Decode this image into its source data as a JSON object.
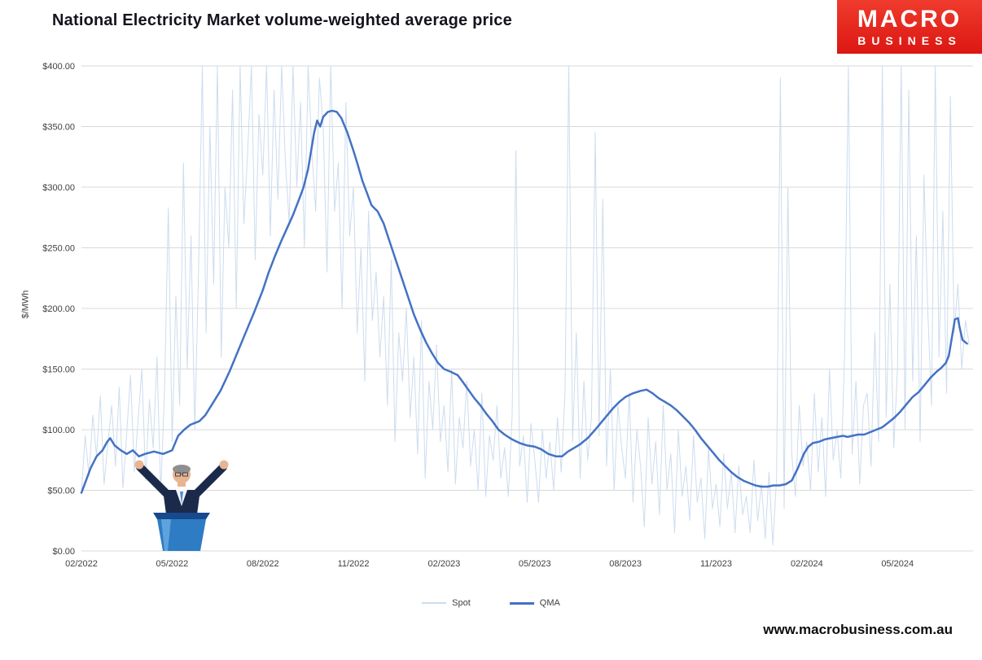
{
  "page": {
    "title": "National Electricity Market volume-weighted average price",
    "footer_url": "www.macrobusiness.com.au"
  },
  "logo": {
    "line1": "MACRO",
    "line2": "BUSINESS",
    "bg_color": "#e32119",
    "text_color": "#ffffff"
  },
  "chart_data": {
    "type": "line",
    "title": "National Electricity Market volume-weighted average price",
    "xlabel": "",
    "ylabel": "$/MWh",
    "ylim": [
      0,
      400
    ],
    "xlim": [
      0,
      29.5
    ],
    "grid": true,
    "legend_position": "bottom",
    "y_ticks": [
      0,
      50,
      100,
      150,
      200,
      250,
      300,
      350,
      400
    ],
    "y_tick_labels": [
      "$0.00",
      "$50.00",
      "$100.00",
      "$150.00",
      "$200.00",
      "$250.00",
      "$300.00",
      "$350.00",
      "$400.00"
    ],
    "x_ticks": [
      0,
      3,
      6,
      9,
      12,
      15,
      18,
      21,
      24,
      27
    ],
    "x_tick_labels": [
      "02/2022",
      "05/2022",
      "08/2022",
      "11/2022",
      "02/2023",
      "05/2023",
      "08/2023",
      "11/2023",
      "02/2024",
      "05/2024"
    ],
    "colors": {
      "grid": "#d9d9d9",
      "tick_text": "#404040"
    },
    "series": [
      {
        "name": "Spot",
        "color": "#ccdcee",
        "width": 1,
        "x_start": 0,
        "x_step": 0.125,
        "values": [
          48,
          95,
          62,
          112,
          78,
          128,
          55,
          88,
          120,
          70,
          135,
          52,
          98,
          145,
          65,
          108,
          150,
          58,
          125,
          85,
          160,
          48,
          132,
          283,
          90,
          210,
          120,
          320,
          150,
          260,
          100,
          230,
          400,
          180,
          350,
          220,
          400,
          160,
          300,
          250,
          380,
          200,
          400,
          270,
          330,
          400,
          240,
          360,
          310,
          400,
          260,
          380,
          290,
          400,
          320,
          270,
          400,
          300,
          370,
          250,
          400,
          330,
          280,
          390,
          350,
          230,
          400,
          280,
          320,
          200,
          370,
          260,
          300,
          180,
          250,
          140,
          280,
          190,
          230,
          160,
          210,
          120,
          240,
          90,
          180,
          140,
          200,
          110,
          160,
          80,
          190,
          60,
          140,
          100,
          170,
          90,
          120,
          65,
          150,
          55,
          110,
          85,
          140,
          70,
          100,
          50,
          130,
          45,
          95,
          75,
          120,
          60,
          85,
          45,
          110,
          330,
          70,
          95,
          40,
          105,
          75,
          40,
          100,
          60,
          90,
          50,
          110,
          65,
          130,
          400,
          90,
          180,
          60,
          140,
          75,
          110,
          345,
          95,
          290,
          70,
          150,
          50,
          120,
          85,
          60,
          130,
          40,
          100,
          70,
          20,
          110,
          55,
          90,
          30,
          120,
          50,
          80,
          15,
          100,
          45,
          70,
          25,
          95,
          40,
          60,
          10,
          85,
          35,
          55,
          20,
          80,
          35,
          65,
          15,
          70,
          30,
          45,
          15,
          75,
          25,
          55,
          10,
          65,
          5,
          60,
          390,
          35,
          300,
          80,
          45,
          120,
          70,
          90,
          50,
          130,
          65,
          110,
          45,
          150,
          75,
          100,
          60,
          160,
          400,
          80,
          140,
          55,
          120,
          130,
          70,
          180,
          90,
          400,
          110,
          220,
          85,
          150,
          400,
          100,
          380,
          140,
          260,
          90,
          310,
          200,
          120,
          400,
          160,
          280,
          130,
          375,
          180,
          220,
          150,
          190,
          170
        ]
      },
      {
        "name": "QMA",
        "color": "#4472c4",
        "width": 2.5,
        "points": [
          [
            0,
            48
          ],
          [
            0.15,
            58
          ],
          [
            0.3,
            68
          ],
          [
            0.5,
            78
          ],
          [
            0.7,
            83
          ],
          [
            0.85,
            90
          ],
          [
            0.95,
            93
          ],
          [
            1.1,
            87
          ],
          [
            1.3,
            83
          ],
          [
            1.5,
            80
          ],
          [
            1.7,
            83
          ],
          [
            1.9,
            78
          ],
          [
            2.1,
            80
          ],
          [
            2.4,
            82
          ],
          [
            2.7,
            80
          ],
          [
            3.0,
            83
          ],
          [
            3.2,
            95
          ],
          [
            3.4,
            100
          ],
          [
            3.6,
            104
          ],
          [
            3.9,
            107
          ],
          [
            4.1,
            112
          ],
          [
            4.3,
            120
          ],
          [
            4.6,
            132
          ],
          [
            4.9,
            148
          ],
          [
            5.1,
            160
          ],
          [
            5.4,
            178
          ],
          [
            5.7,
            196
          ],
          [
            6.0,
            215
          ],
          [
            6.2,
            230
          ],
          [
            6.4,
            243
          ],
          [
            6.6,
            255
          ],
          [
            6.8,
            266
          ],
          [
            7.0,
            277
          ],
          [
            7.2,
            290
          ],
          [
            7.35,
            300
          ],
          [
            7.5,
            315
          ],
          [
            7.6,
            330
          ],
          [
            7.7,
            345
          ],
          [
            7.8,
            355
          ],
          [
            7.9,
            350
          ],
          [
            8.0,
            358
          ],
          [
            8.15,
            362
          ],
          [
            8.3,
            363
          ],
          [
            8.45,
            362
          ],
          [
            8.6,
            357
          ],
          [
            8.8,
            345
          ],
          [
            9.0,
            330
          ],
          [
            9.15,
            318
          ],
          [
            9.3,
            305
          ],
          [
            9.45,
            295
          ],
          [
            9.6,
            285
          ],
          [
            9.8,
            280
          ],
          [
            10.0,
            270
          ],
          [
            10.2,
            255
          ],
          [
            10.4,
            240
          ],
          [
            10.6,
            225
          ],
          [
            10.8,
            210
          ],
          [
            11.0,
            195
          ],
          [
            11.2,
            183
          ],
          [
            11.4,
            172
          ],
          [
            11.6,
            163
          ],
          [
            11.8,
            155
          ],
          [
            12.0,
            150
          ],
          [
            12.2,
            148
          ],
          [
            12.45,
            145
          ],
          [
            12.6,
            140
          ],
          [
            12.8,
            133
          ],
          [
            13.0,
            126
          ],
          [
            13.2,
            120
          ],
          [
            13.4,
            113
          ],
          [
            13.6,
            107
          ],
          [
            13.8,
            100
          ],
          [
            14.0,
            96
          ],
          [
            14.25,
            92
          ],
          [
            14.5,
            89
          ],
          [
            14.75,
            87
          ],
          [
            15.0,
            86
          ],
          [
            15.2,
            84
          ],
          [
            15.45,
            80
          ],
          [
            15.7,
            78
          ],
          [
            15.9,
            78
          ],
          [
            16.1,
            82
          ],
          [
            16.3,
            85
          ],
          [
            16.5,
            88
          ],
          [
            16.75,
            93
          ],
          [
            17.0,
            100
          ],
          [
            17.2,
            106
          ],
          [
            17.4,
            112
          ],
          [
            17.6,
            118
          ],
          [
            17.8,
            123
          ],
          [
            18.0,
            127
          ],
          [
            18.25,
            130
          ],
          [
            18.5,
            132
          ],
          [
            18.7,
            133
          ],
          [
            18.9,
            130
          ],
          [
            19.1,
            126
          ],
          [
            19.3,
            123
          ],
          [
            19.5,
            120
          ],
          [
            19.7,
            116
          ],
          [
            19.9,
            111
          ],
          [
            20.1,
            106
          ],
          [
            20.3,
            100
          ],
          [
            20.5,
            93
          ],
          [
            20.7,
            87
          ],
          [
            20.9,
            81
          ],
          [
            21.1,
            75
          ],
          [
            21.3,
            70
          ],
          [
            21.5,
            65
          ],
          [
            21.7,
            61
          ],
          [
            21.9,
            58
          ],
          [
            22.1,
            56
          ],
          [
            22.3,
            54
          ],
          [
            22.5,
            53
          ],
          [
            22.7,
            53
          ],
          [
            22.9,
            54
          ],
          [
            23.1,
            54
          ],
          [
            23.3,
            55
          ],
          [
            23.5,
            58
          ],
          [
            23.7,
            68
          ],
          [
            23.9,
            80
          ],
          [
            24.05,
            86
          ],
          [
            24.2,
            89
          ],
          [
            24.4,
            90
          ],
          [
            24.6,
            92
          ],
          [
            24.8,
            93
          ],
          [
            25.0,
            94
          ],
          [
            25.2,
            95
          ],
          [
            25.35,
            94
          ],
          [
            25.5,
            95
          ],
          [
            25.7,
            96
          ],
          [
            25.9,
            96
          ],
          [
            26.1,
            98
          ],
          [
            26.3,
            100
          ],
          [
            26.5,
            102
          ],
          [
            26.7,
            106
          ],
          [
            26.9,
            110
          ],
          [
            27.1,
            115
          ],
          [
            27.3,
            121
          ],
          [
            27.5,
            127
          ],
          [
            27.7,
            131
          ],
          [
            27.9,
            137
          ],
          [
            28.1,
            143
          ],
          [
            28.3,
            148
          ],
          [
            28.45,
            151
          ],
          [
            28.6,
            155
          ],
          [
            28.7,
            161
          ],
          [
            28.8,
            176
          ],
          [
            28.9,
            191
          ],
          [
            29.0,
            192
          ],
          [
            29.05,
            185
          ],
          [
            29.15,
            174
          ],
          [
            29.3,
            171
          ]
        ]
      }
    ]
  }
}
